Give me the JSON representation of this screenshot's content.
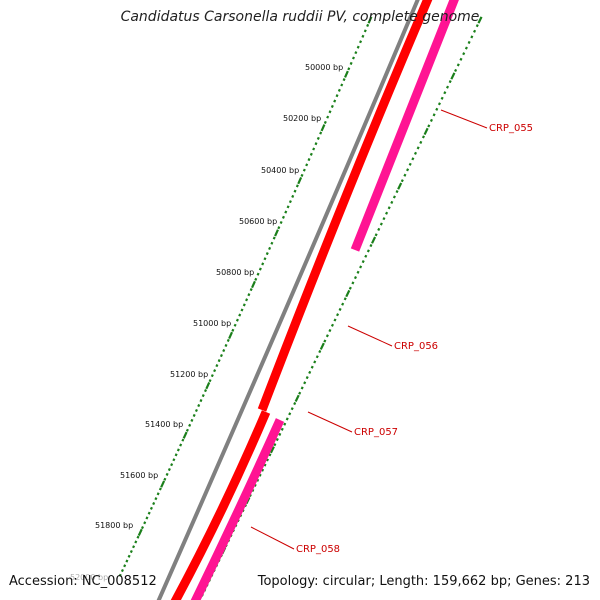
{
  "title": "Candidatus Carsonella ruddii PV, complete genome",
  "footer": {
    "accession": "Accession: NC_008512",
    "summary": "Topology: circular; Length: 159,662 bp; Genes: 213"
  },
  "colors": {
    "backbone": "#808080",
    "forward_genes": "#ff0000",
    "reverse_genes": "#ff1493",
    "ticks": "#1a7f1a",
    "gene_labels": "#cc0000"
  },
  "scale": {
    "tick_labels": [
      "50000 bp",
      "50200 bp",
      "50400 bp",
      "50600 bp",
      "50800 bp",
      "51000 bp",
      "51200 bp",
      "51400 bp",
      "51600 bp",
      "51800 bp",
      "52000 bp"
    ]
  },
  "genes": [
    {
      "name": "CRP_055"
    },
    {
      "name": "CRP_056"
    },
    {
      "name": "CRP_057"
    },
    {
      "name": "CRP_058"
    }
  ]
}
